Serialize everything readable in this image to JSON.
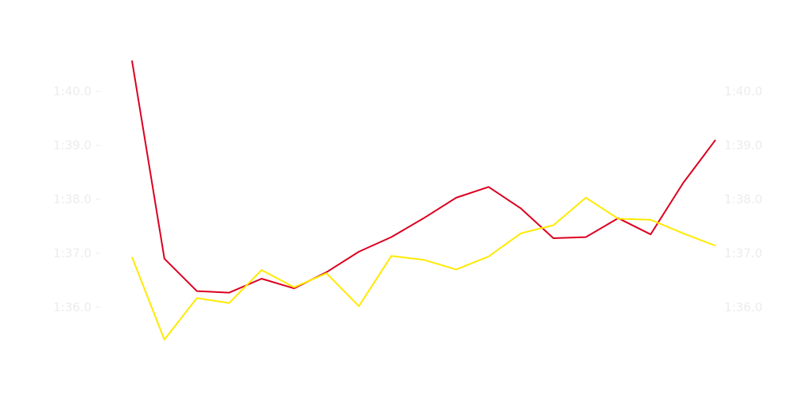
{
  "chart_data": {
    "type": "line",
    "title": "",
    "xlabel": "",
    "ylabel": "",
    "x": [
      1,
      2,
      3,
      4,
      5,
      6,
      7,
      8,
      9,
      10,
      11,
      12,
      13,
      14,
      15,
      16,
      17,
      18,
      19
    ],
    "y_unit": "seconds",
    "ylim": [
      5.0,
      105.5
    ],
    "y_ticks": [
      36,
      37,
      38,
      39,
      40
    ],
    "y_tick_labels": [
      "1:36.0",
      "1:37.0",
      "1:38.0",
      "1:39.0",
      "1:40.0"
    ],
    "axes": [
      "left",
      "right"
    ],
    "grid": false,
    "legend": "none",
    "series": [
      {
        "color": "#dc0020",
        "values": [
          100.57,
          96.9,
          96.3,
          96.27,
          96.53,
          96.35,
          96.65,
          97.03,
          97.3,
          97.65,
          98.03,
          98.23,
          97.83,
          97.28,
          97.3,
          97.65,
          97.35,
          98.3,
          99.1
        ]
      },
      {
        "color": "#ffea00",
        "values": [
          96.93,
          95.4,
          96.17,
          96.08,
          96.69,
          96.37,
          96.63,
          96.02,
          96.95,
          96.88,
          96.7,
          96.94,
          97.37,
          97.52,
          98.03,
          97.64,
          97.62,
          97.37,
          97.14
        ]
      }
    ]
  }
}
